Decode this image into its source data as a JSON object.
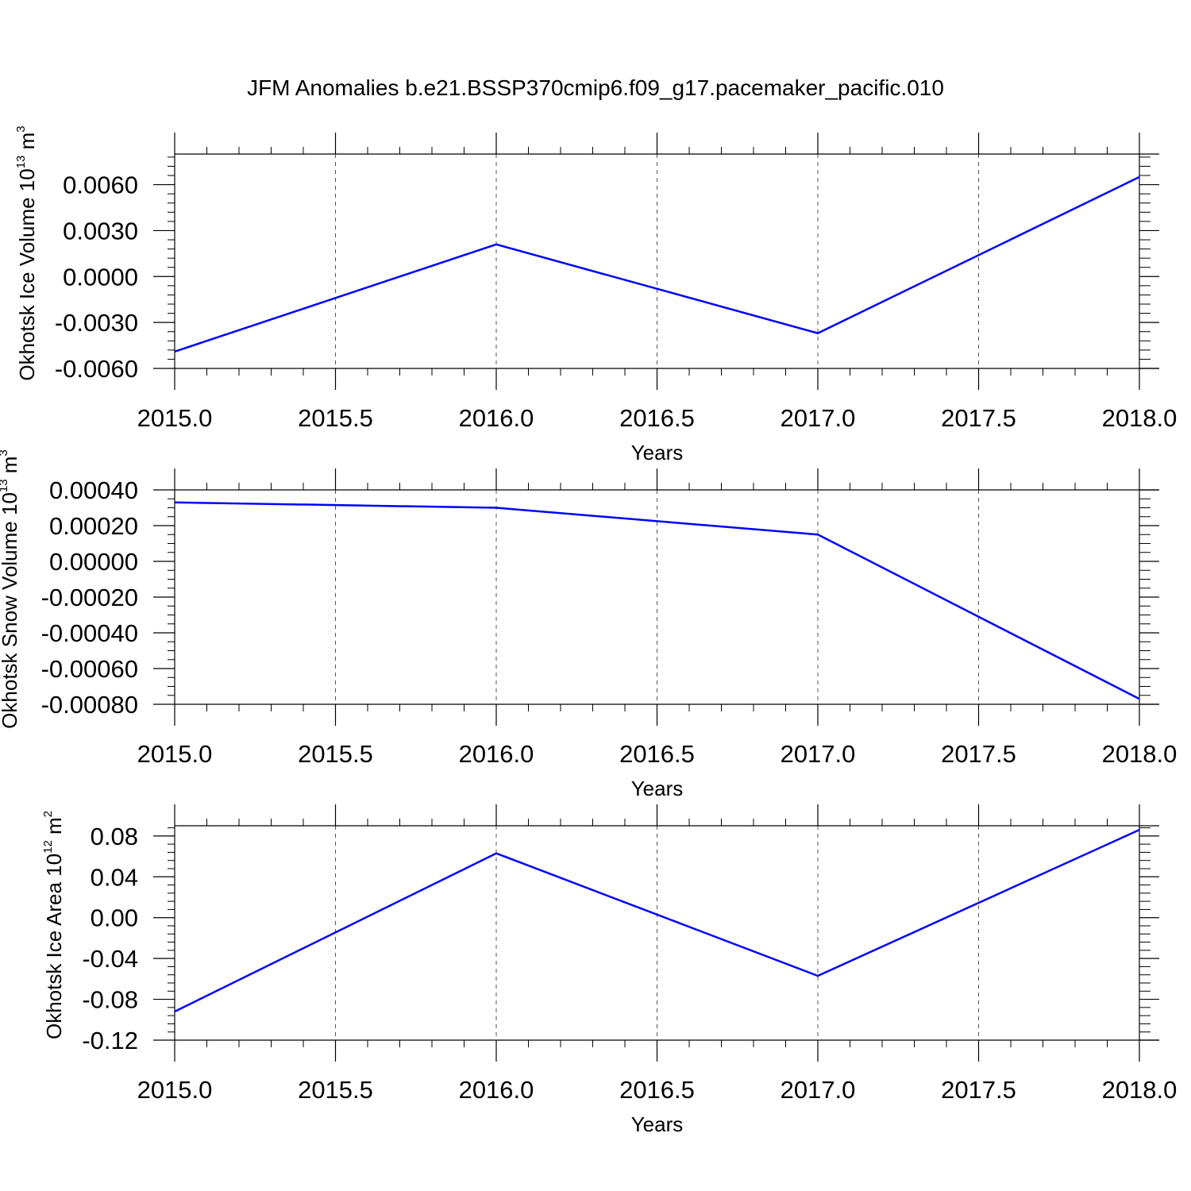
{
  "figure": {
    "title": "JFM Anomalies b.e21.BSSP370cmip6.f09_g17.pacemaker_pacific.010",
    "line_color": "#0000ff",
    "grid_color": "#555555"
  },
  "chart_data": [
    {
      "type": "line",
      "xlabel": "Years",
      "ylabel": {
        "main": "Okhotsk Ice Volume 10",
        "sup": "13",
        "unit": " m",
        "unit_sup": "3"
      },
      "x": [
        2015,
        2016,
        2017,
        2018
      ],
      "series": [
        {
          "values": [
            -0.0049,
            0.0021,
            -0.0037,
            0.0065
          ]
        }
      ],
      "xlim": [
        2015,
        2018
      ],
      "ylim": [
        -0.006,
        0.008
      ],
      "xticks": [
        2015.0,
        2015.5,
        2016.0,
        2016.5,
        2017.0,
        2017.5,
        2018.0
      ],
      "xtick_labels": [
        "2015.0",
        "2015.5",
        "2016.0",
        "2016.5",
        "2017.0",
        "2017.5",
        "2018.0"
      ],
      "yticks": [
        0.006,
        0.003,
        0.0,
        -0.003,
        -0.006
      ],
      "ytick_labels": [
        "0.0060",
        "0.0030",
        "0.0000",
        "-0.0030",
        "-0.0060"
      ],
      "y_minor_step": 0.0006,
      "grid": "x-dashed"
    },
    {
      "type": "line",
      "xlabel": "Years",
      "ylabel": {
        "main": "Okhotsk Snow Volume 10",
        "sup": "13",
        "unit": " m",
        "unit_sup": "3"
      },
      "x": [
        2015,
        2016,
        2017,
        2018
      ],
      "series": [
        {
          "values": [
            0.00033,
            0.0003,
            0.00015,
            -0.00077
          ]
        }
      ],
      "xlim": [
        2015,
        2018
      ],
      "ylim": [
        -0.0008,
        0.0004
      ],
      "xticks": [
        2015.0,
        2015.5,
        2016.0,
        2016.5,
        2017.0,
        2017.5,
        2018.0
      ],
      "xtick_labels": [
        "2015.0",
        "2015.5",
        "2016.0",
        "2016.5",
        "2017.0",
        "2017.5",
        "2018.0"
      ],
      "yticks": [
        0.0004,
        0.0002,
        0.0,
        -0.0002,
        -0.0004,
        -0.0006,
        -0.0008
      ],
      "ytick_labels": [
        "0.00040",
        "0.00020",
        "0.00000",
        "-0.00020",
        "-0.00040",
        "-0.00060",
        "-0.00080"
      ],
      "y_minor_step": 5e-05,
      "grid": "x-dashed"
    },
    {
      "type": "line",
      "xlabel": "Years",
      "ylabel": {
        "main": "Okhotsk Ice Area 10",
        "sup": "12",
        "unit": " m",
        "unit_sup": "2"
      },
      "x": [
        2015,
        2016,
        2017,
        2018
      ],
      "series": [
        {
          "values": [
            -0.092,
            0.063,
            -0.057,
            0.086
          ]
        }
      ],
      "xlim": [
        2015,
        2018
      ],
      "ylim": [
        -0.12,
        0.09
      ],
      "xticks": [
        2015.0,
        2015.5,
        2016.0,
        2016.5,
        2017.0,
        2017.5,
        2018.0
      ],
      "xtick_labels": [
        "2015.0",
        "2015.5",
        "2016.0",
        "2016.5",
        "2017.0",
        "2017.5",
        "2018.0"
      ],
      "yticks": [
        0.08,
        0.04,
        0.0,
        -0.04,
        -0.08,
        -0.12
      ],
      "ytick_labels": [
        "0.08",
        "0.04",
        "0.00",
        "-0.04",
        "-0.08",
        "-0.12"
      ],
      "y_minor_step": 0.008,
      "grid": "x-dashed"
    }
  ]
}
